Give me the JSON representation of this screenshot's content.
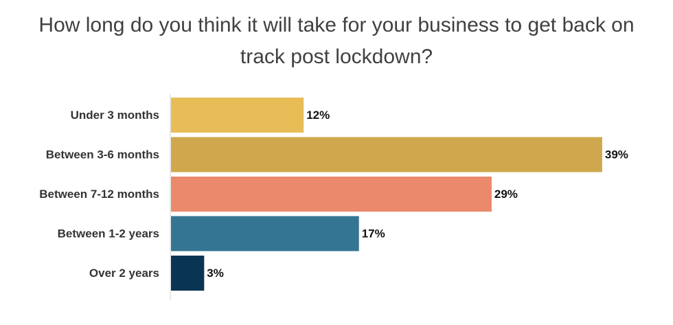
{
  "chart_data": {
    "type": "bar",
    "orientation": "horizontal",
    "title": "How long do you think it will take for your business to get back on track post lockdown?",
    "categories": [
      "Under 3 months",
      "Between 3-6 months",
      "Between 7-12 months",
      "Between 1-2 years",
      "Over 2 years"
    ],
    "values": [
      12,
      39,
      29,
      17,
      3
    ],
    "value_labels": [
      "12%",
      "39%",
      "29%",
      "17%",
      "3%"
    ],
    "unit": "%",
    "colors": [
      "#E8BD57",
      "#CFA84E",
      "#EA896B",
      "#357594",
      "#0A3552"
    ],
    "grid": false,
    "legend": "none"
  }
}
